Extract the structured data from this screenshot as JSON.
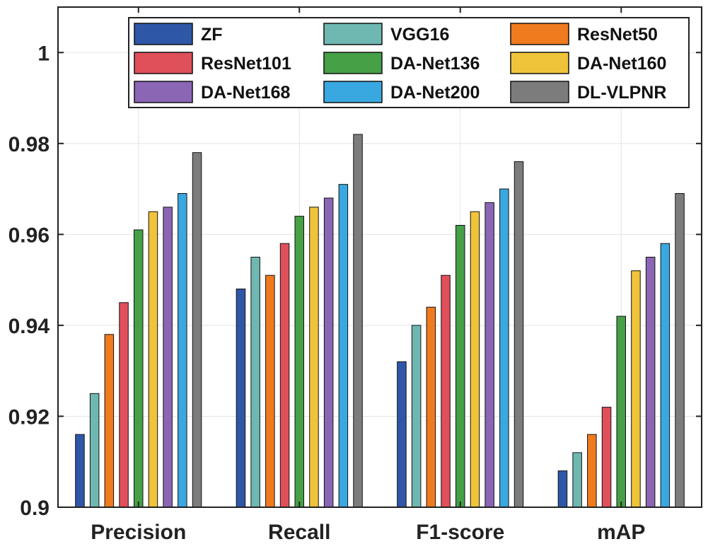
{
  "chart_data": {
    "type": "bar",
    "title": "",
    "xlabel": "",
    "ylabel": "",
    "ylim": [
      0.9,
      1.01
    ],
    "yticks": [
      "0.9",
      "0.92",
      "0.94",
      "0.96",
      "0.98",
      "1"
    ],
    "ytick_values": [
      0.9,
      0.92,
      0.94,
      0.96,
      0.98,
      1.0
    ],
    "grid": true,
    "legend_position": "top-right",
    "categories": [
      "Precision",
      "Recall",
      "F1-score",
      "mAP"
    ],
    "series": [
      {
        "name": "ZF",
        "color": "#2f57a8",
        "values": [
          0.916,
          0.948,
          0.932,
          0.908
        ]
      },
      {
        "name": "VGG16",
        "color": "#6fb8b2",
        "values": [
          0.925,
          0.955,
          0.94,
          0.912
        ]
      },
      {
        "name": "ResNet50",
        "color": "#f07a1e",
        "values": [
          0.938,
          0.951,
          0.944,
          0.916
        ]
      },
      {
        "name": "ResNet101",
        "color": "#e0505a",
        "values": [
          0.945,
          0.958,
          0.951,
          0.922
        ]
      },
      {
        "name": "DA-Net136",
        "color": "#45a046",
        "values": [
          0.961,
          0.964,
          0.962,
          0.942
        ]
      },
      {
        "name": "DA-Net160",
        "color": "#f0c43a",
        "values": [
          0.965,
          0.966,
          0.965,
          0.952
        ]
      },
      {
        "name": "DA-Net168",
        "color": "#8a66b4",
        "values": [
          0.966,
          0.968,
          0.967,
          0.955
        ]
      },
      {
        "name": "DA-Net200",
        "color": "#3aa8e0",
        "values": [
          0.969,
          0.971,
          0.97,
          0.958
        ]
      },
      {
        "name": "DL-VLPNR",
        "color": "#7c7c7c",
        "values": [
          0.978,
          0.982,
          0.976,
          0.969
        ]
      }
    ]
  }
}
